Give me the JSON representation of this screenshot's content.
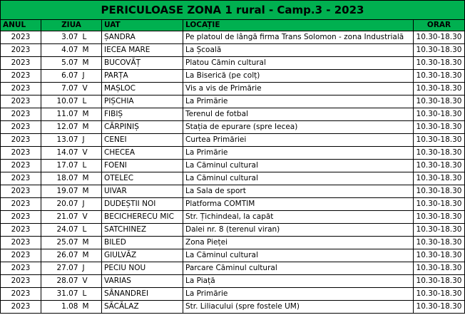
{
  "table": {
    "title": "PERICULOASE ZONA 1 rural - Camp.3 - 2023",
    "headers": [
      "ANUL",
      "ZIUA",
      "UAT",
      "LOCAȚIE",
      "ORAR"
    ],
    "rows": [
      [
        "2023",
        "3.07",
        "L",
        "ȘANDRA",
        "Pe platoul de lângă firma Trans Solomon - zona Industrială",
        "10.30-18.30"
      ],
      [
        "2023",
        "4.07",
        "M",
        "IECEA MARE",
        "La Școală",
        "10.30-18.30"
      ],
      [
        "2023",
        "5.07",
        "M",
        "BUCOVĂȚ",
        "Platou Cămin cultural",
        "10.30-18.30"
      ],
      [
        "2023",
        "6.07",
        "J",
        "PARȚA",
        "La Biserică (pe colț)",
        "10.30-18.30"
      ],
      [
        "2023",
        "7.07",
        "V",
        "MAȘLOC",
        "Vis a vis de Primărie",
        "10.30-18.30"
      ],
      [
        "2023",
        "10.07",
        "L",
        "PIȘCHIA",
        "La Primărie",
        "10.30-18.30"
      ],
      [
        "2023",
        "11.07",
        "M",
        "FIBIȘ",
        "Terenul de fotbal",
        "10.30-18.30"
      ],
      [
        "2023",
        "12.07",
        "M",
        "CĂRPINIȘ",
        "Stația de epurare (spre Iecea)",
        "10.30-18.30"
      ],
      [
        "2023",
        "13.07",
        "J",
        "CENEI",
        "Curtea Primăriei",
        "10.30-18.30"
      ],
      [
        "2023",
        "14.07",
        "V",
        "CHECEA",
        "La Primărie",
        "10.30-18.30"
      ],
      [
        "2023",
        "17.07",
        "L",
        "FOENI",
        "La Căminul cultural",
        "10.30-18.30"
      ],
      [
        "2023",
        "18.07",
        "M",
        "OTELEC",
        "La Căminul cultural",
        "10.30-18.30"
      ],
      [
        "2023",
        "19.07",
        "M",
        "UIVAR",
        "La Sala de sport",
        "10.30-18.30"
      ],
      [
        "2023",
        "20.07",
        "J",
        "DUDEȘTII NOI",
        "Platforma COMTIM",
        "10.30-18.30"
      ],
      [
        "2023",
        "21.07",
        "V",
        "BECICHERECU MIC",
        "Str. Țichindeal, la capăt",
        "10.30-18.30"
      ],
      [
        "2023",
        "24.07",
        "L",
        "SATCHINEZ",
        "Dalei nr. 8 (terenul viran)",
        "10.30-18.30"
      ],
      [
        "2023",
        "25.07",
        "M",
        "BILED",
        "Zona Pieței",
        "10.30-18.30"
      ],
      [
        "2023",
        "26.07",
        "M",
        "GIULVĂZ",
        "La Căminul cultural",
        "10.30-18.30"
      ],
      [
        "2023",
        "27.07",
        "J",
        "PECIU NOU",
        "Parcare Căminul cultural",
        "10.30-18.30"
      ],
      [
        "2023",
        "28.07",
        "V",
        "VARIAS",
        "La Piață",
        "10.30-18.30"
      ],
      [
        "2023",
        "31.07",
        "L",
        "SÂNANDREI",
        "La Primărie",
        "10.30-18.30"
      ],
      [
        "2023",
        "1.08",
        "M",
        "SĂCĂLAZ",
        "Str. Liliacului (spre fostele UM)",
        "10.30-18.30"
      ]
    ]
  }
}
